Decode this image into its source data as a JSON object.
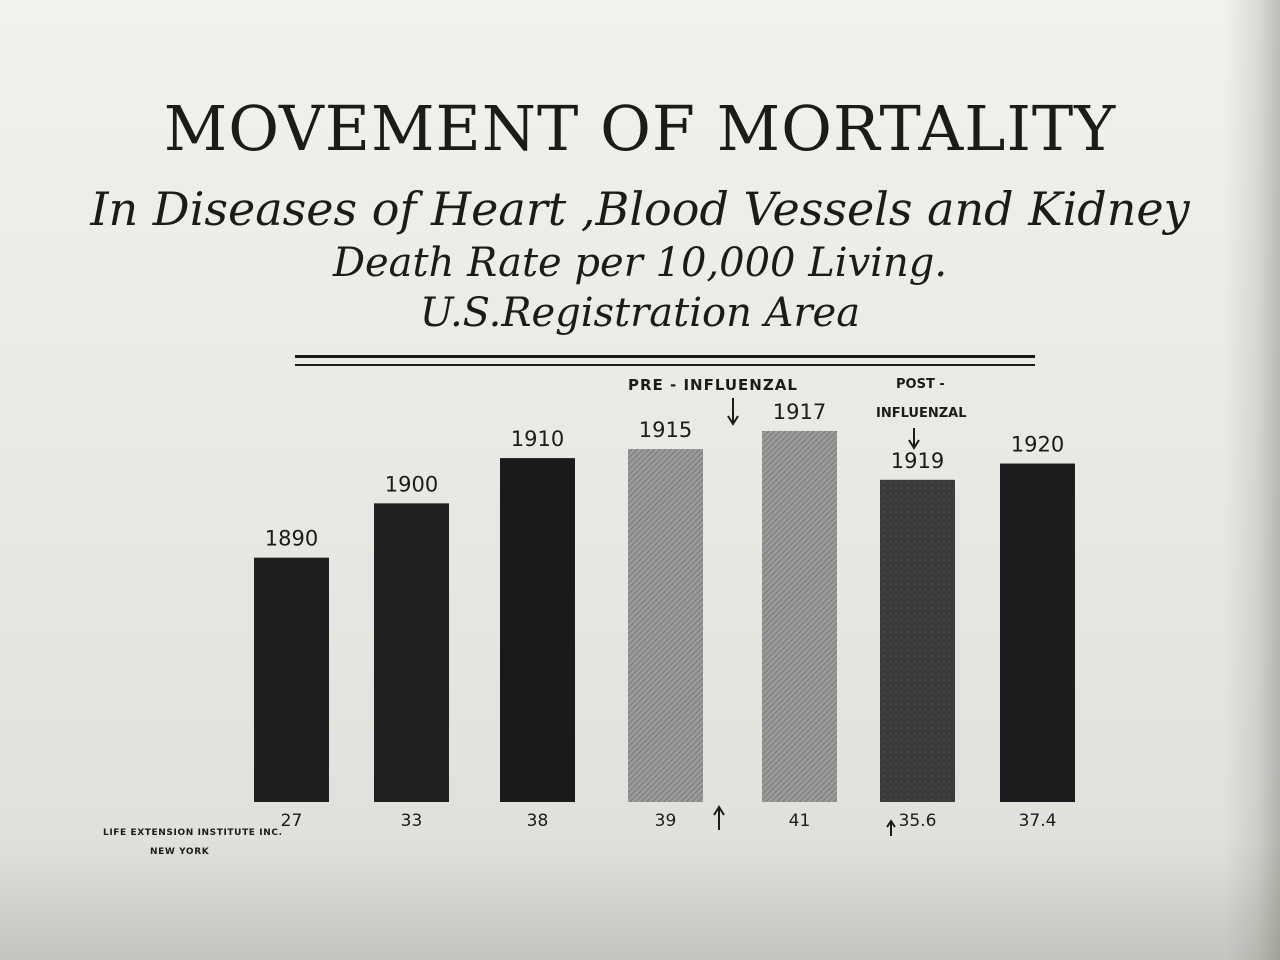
{
  "title": "MOVEMENT OF MORTALITY",
  "subtitle_lines": [
    "In Diseases of Heart ,Blood Vessels and Kidney",
    "Death Rate per 10,000 Living.",
    "U.S.Registration Area"
  ],
  "annotations": {
    "pre_influenzal": "PRE - INFLUENZAL",
    "post_line1": "POST -",
    "post_line2": "INFLUENZAL"
  },
  "credit": {
    "line1": "LIFE EXTENSION INSTITUTE INC.",
    "line2": "NEW YORK"
  },
  "chart_data": {
    "type": "bar",
    "categories": [
      "1890",
      "1900",
      "1910",
      "1915",
      "1917",
      "1919",
      "1920"
    ],
    "values": [
      27,
      33,
      38,
      39,
      41,
      35.6,
      37.4
    ],
    "value_labels": [
      "27",
      "33",
      "38",
      "39",
      "41",
      "35.6",
      "37.4"
    ],
    "title": "MOVEMENT OF MORTALITY",
    "subtitle": "In Diseases of Heart ,Blood Vessels and Kidney",
    "xlabel": "",
    "ylabel": "",
    "ylim": [
      0,
      41
    ],
    "grid": false,
    "legend": "none",
    "bar_fills": [
      "#1f1f1f",
      "#202020",
      "#1a1a1a",
      "#8f8f8f",
      "#9a9a9a",
      "#3a3a3a",
      "#1d1d1f"
    ]
  }
}
